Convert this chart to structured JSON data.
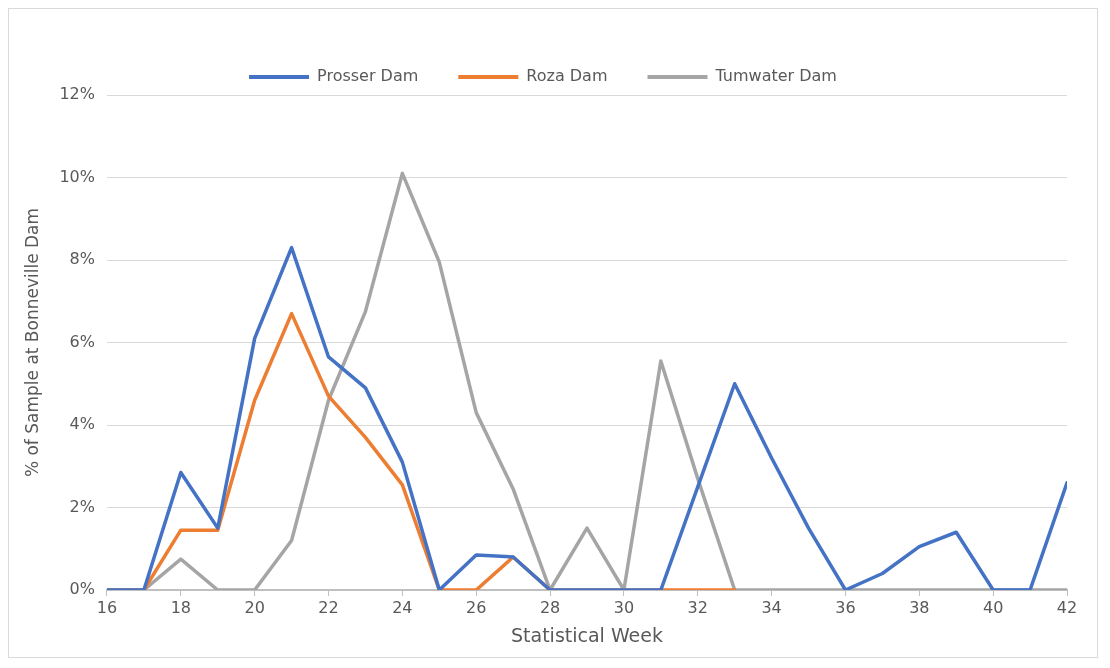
{
  "chart_data": {
    "type": "line",
    "xlabel": "Statistical Week",
    "ylabel": "% of Sample at Bonneville Dam",
    "x": [
      16,
      17,
      18,
      19,
      20,
      21,
      22,
      23,
      24,
      25,
      26,
      27,
      28,
      29,
      30,
      31,
      32,
      33,
      34,
      35,
      36,
      37,
      38,
      39,
      40,
      41,
      42
    ],
    "series": [
      {
        "name": "Prosser Dam",
        "color": "#4472c4",
        "values": [
          0,
          0,
          2.85,
          1.5,
          6.1,
          8.3,
          5.65,
          4.9,
          3.1,
          0,
          0.85,
          0.8,
          0,
          0,
          0,
          0,
          2.5,
          5.0,
          3.2,
          1.5,
          0,
          0.4,
          1.05,
          1.4,
          0,
          0,
          2.6
        ]
      },
      {
        "name": "Roza Dam",
        "color": "#ed7d31",
        "values": [
          0,
          0,
          1.45,
          1.45,
          4.6,
          6.7,
          4.7,
          3.7,
          2.55,
          0,
          0,
          0.8,
          0,
          0,
          0,
          0,
          0,
          0,
          null,
          null,
          null,
          null,
          null,
          null,
          null,
          null,
          null
        ]
      },
      {
        "name": "Tumwater Dam",
        "color": "#a5a5a5",
        "values": [
          0,
          0,
          0.75,
          0,
          0,
          1.2,
          4.6,
          6.75,
          10.1,
          7.95,
          4.3,
          2.45,
          0,
          1.5,
          0,
          5.55,
          2.7,
          0,
          0,
          0,
          0,
          0,
          0,
          0,
          0,
          0,
          0
        ]
      }
    ],
    "xlim": [
      16,
      42
    ],
    "xticks": [
      16,
      18,
      20,
      22,
      24,
      26,
      28,
      30,
      32,
      34,
      36,
      38,
      40,
      42
    ],
    "ylim": [
      0,
      12
    ],
    "yticks": [
      {
        "value": 0,
        "label": "0%"
      },
      {
        "value": 2,
        "label": "2%"
      },
      {
        "value": 4,
        "label": "4%"
      },
      {
        "value": 6,
        "label": "6%"
      },
      {
        "value": 8,
        "label": "8%"
      },
      {
        "value": 10,
        "label": "10%"
      },
      {
        "value": 12,
        "label": "12%"
      }
    ],
    "grid": "y",
    "legend": "top",
    "marker": "none",
    "line_style": "solid"
  }
}
